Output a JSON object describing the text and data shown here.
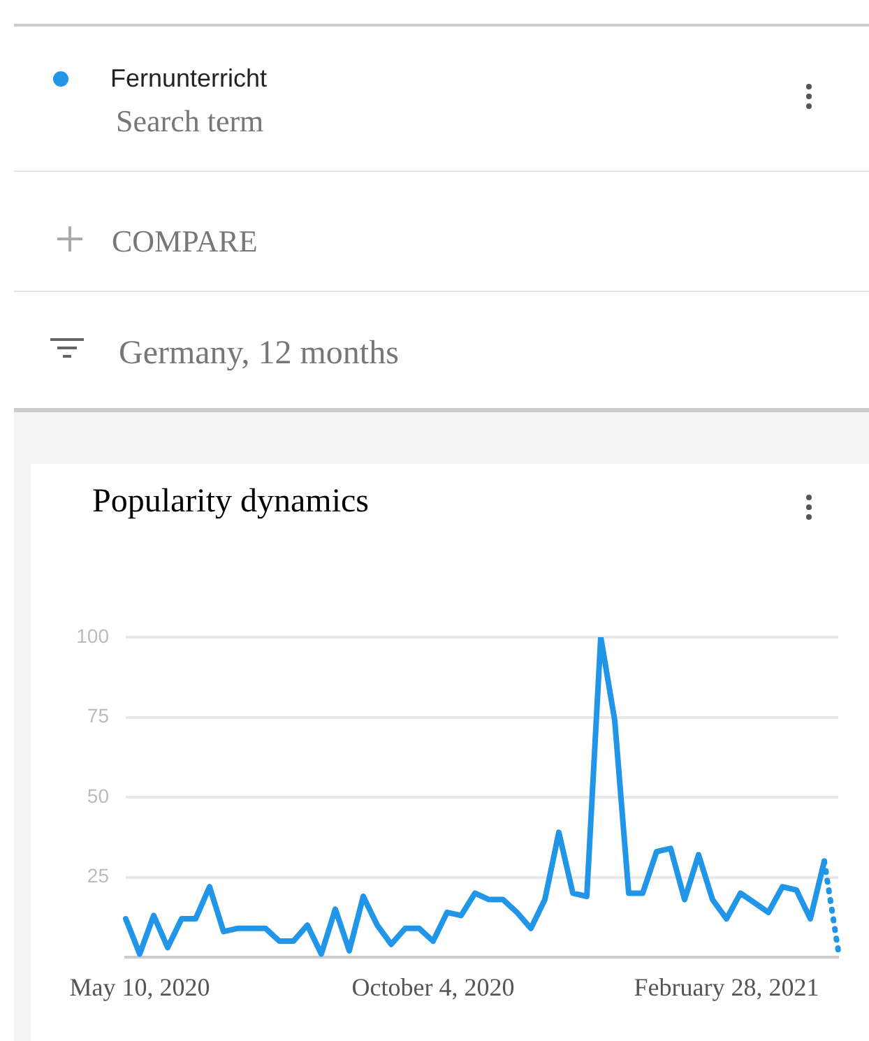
{
  "chart_data": {
    "type": "line",
    "title": "Popularity dynamics",
    "annotations": [
      "Search term",
      "COMPARE",
      "Germany, 12 months"
    ],
    "categories": [
      null,
      "May 10, 2020",
      null,
      null,
      null,
      null,
      null,
      null,
      null,
      null,
      null,
      null,
      null,
      null,
      null,
      null,
      null,
      null,
      null,
      null,
      null,
      null,
      "October 4, 2020",
      null,
      null,
      null,
      null,
      null,
      null,
      null,
      null,
      null,
      null,
      null,
      null,
      null,
      null,
      null,
      null,
      null,
      null,
      null,
      null,
      "February 28, 2021",
      null,
      null,
      null,
      null,
      null,
      null,
      null,
      null
    ],
    "series": [
      {
        "name": "Fernunterricht",
        "color": "#2196e8",
        "values": [
          12,
          1,
          13,
          3,
          12,
          12,
          22,
          8,
          9,
          9,
          9,
          5,
          5,
          10,
          1,
          15,
          2,
          19,
          10,
          4,
          9,
          9,
          5,
          14,
          13,
          20,
          18,
          18,
          14,
          9,
          18,
          39,
          20,
          19,
          100,
          74,
          20,
          20,
          33,
          34,
          18,
          32,
          18,
          12,
          20,
          17,
          14,
          22,
          21,
          12,
          30,
          null
        ]
      },
      {
        "color": "#2196e8",
        "line_style": "dotted",
        "values": [
          null,
          null,
          null,
          null,
          null,
          null,
          null,
          null,
          null,
          null,
          null,
          null,
          null,
          null,
          null,
          null,
          null,
          null,
          null,
          null,
          null,
          null,
          null,
          null,
          null,
          null,
          null,
          null,
          null,
          null,
          null,
          null,
          null,
          null,
          null,
          null,
          null,
          null,
          null,
          null,
          null,
          null,
          null,
          null,
          null,
          null,
          null,
          null,
          null,
          null,
          30,
          2
        ]
      }
    ],
    "ylim": [
      0,
      100
    ],
    "yticks": [
      25,
      50,
      75,
      100
    ],
    "grid": "y",
    "legend": "top left",
    "marker": "none"
  }
}
